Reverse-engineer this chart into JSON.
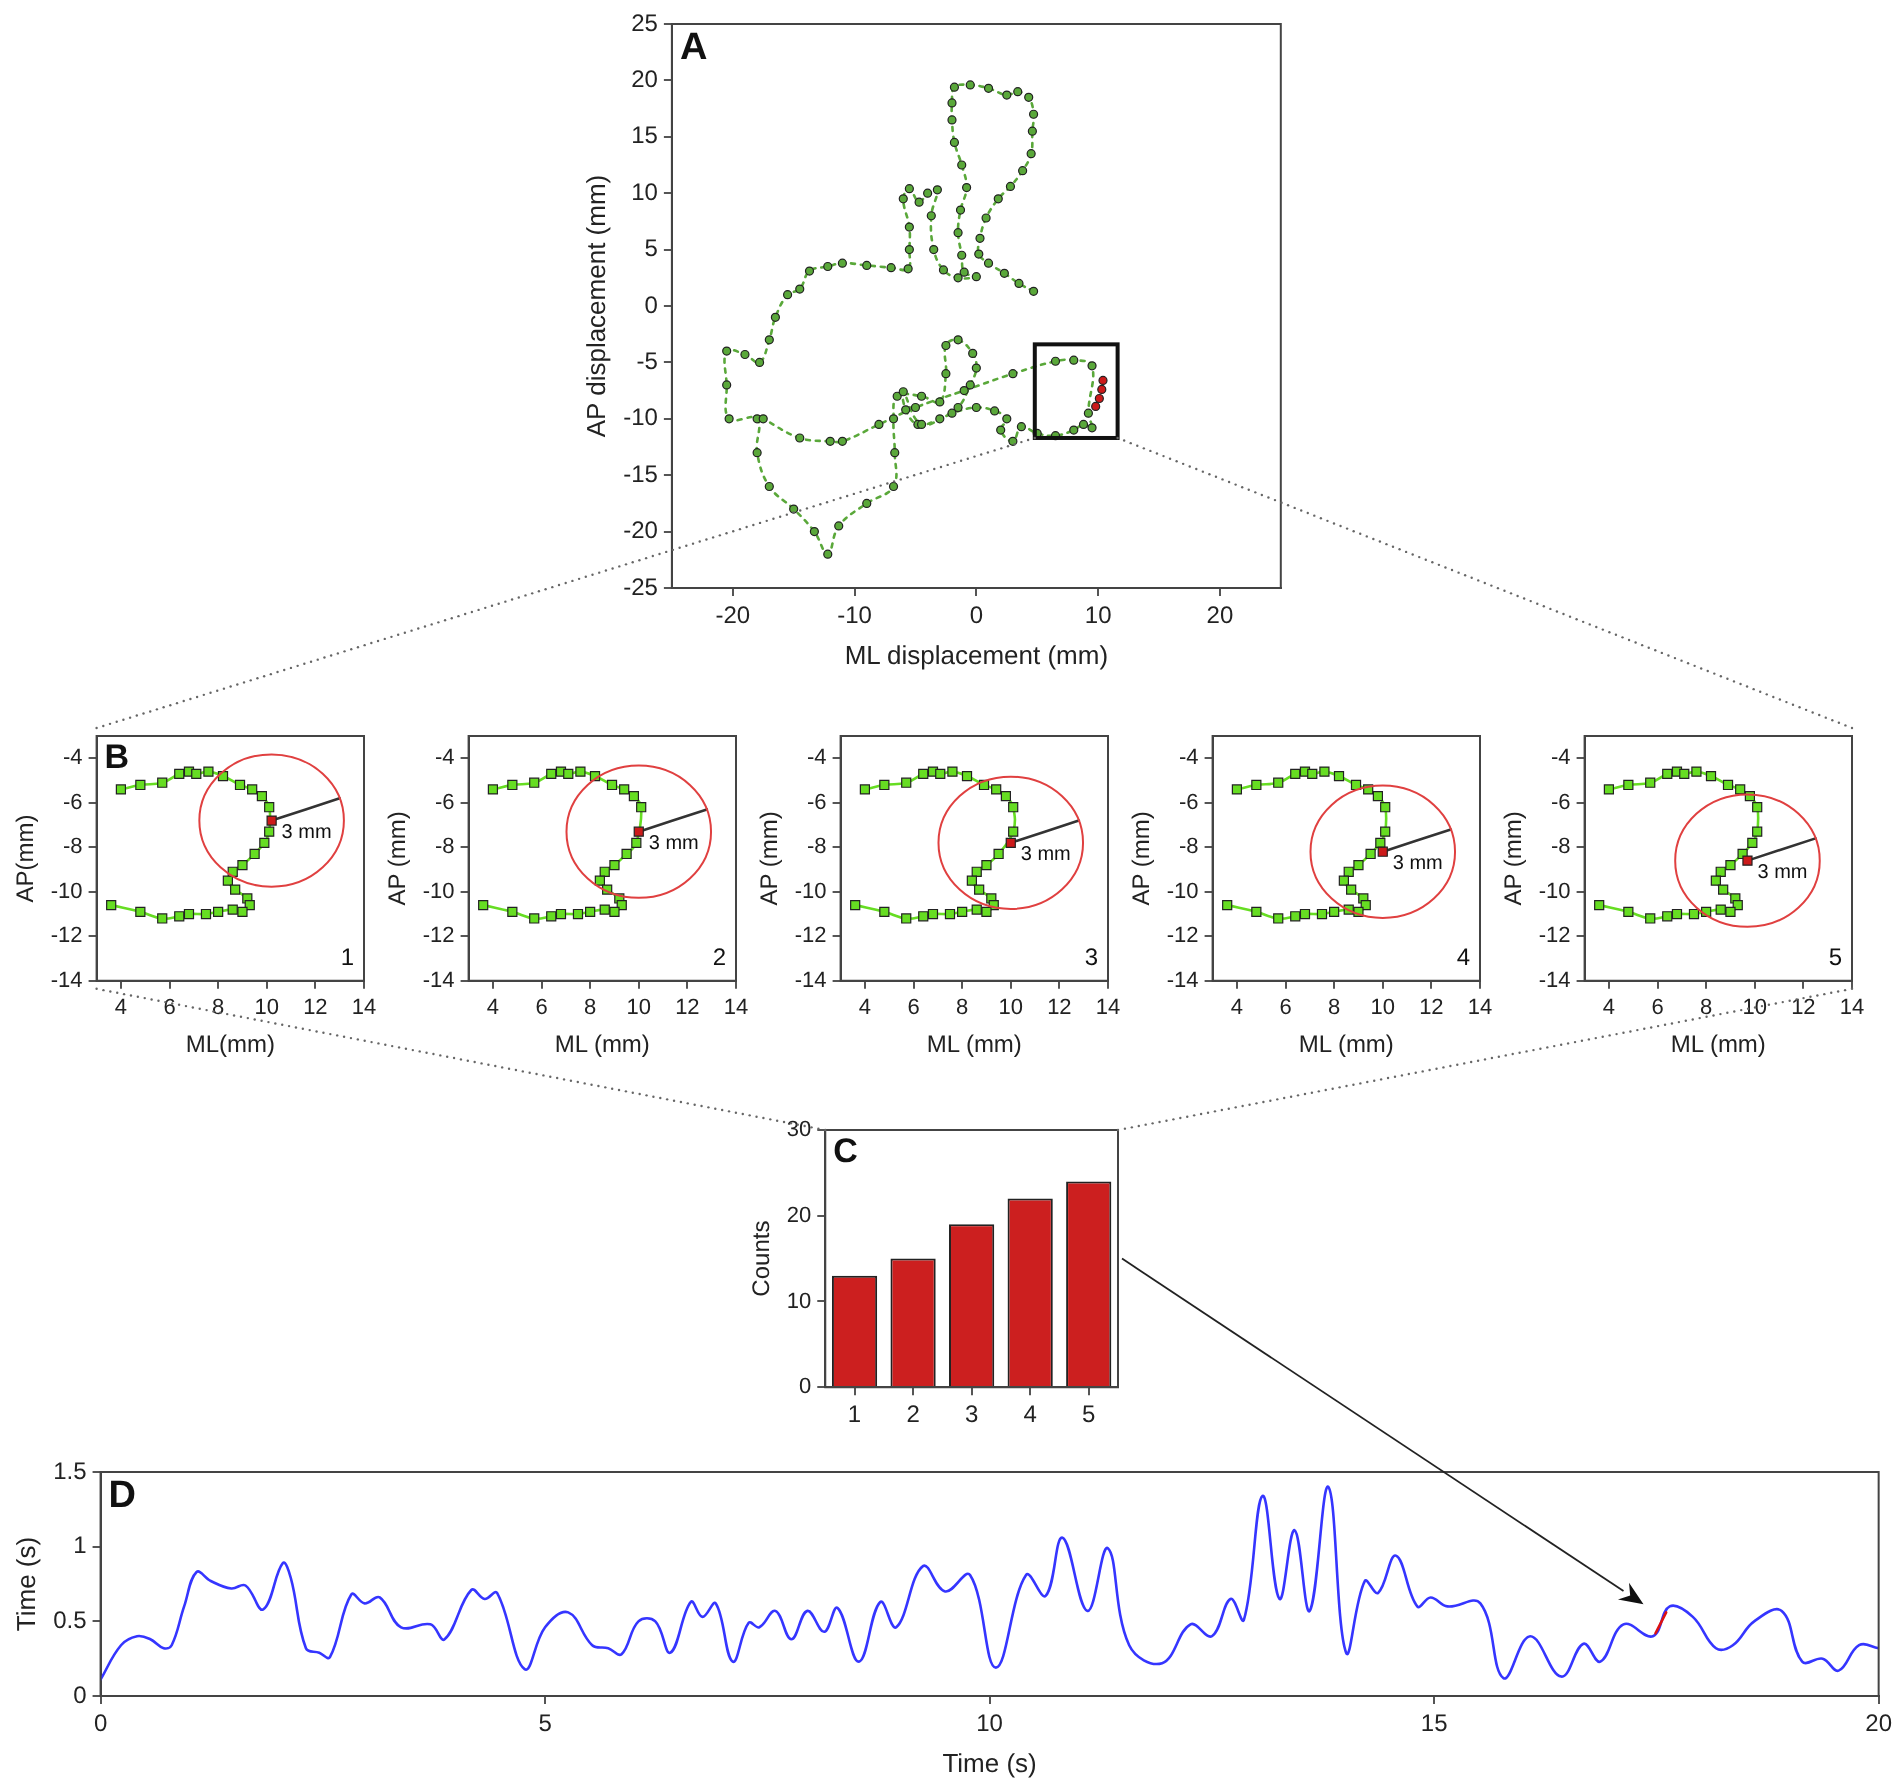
{
  "chart_data": [
    {
      "type": "line",
      "title": "A",
      "xlabel": "ML displacement (mm)",
      "ylabel": "AP displacement (mm)",
      "xlim": [
        -25,
        25
      ],
      "xticks": [
        -20,
        -10,
        0,
        10,
        20
      ],
      "ylim": [
        -25,
        25
      ],
      "yticks": [
        -25,
        -20,
        -15,
        -10,
        -5,
        0,
        5,
        10,
        15,
        20,
        25
      ],
      "series": [
        {
          "type": "line",
          "color": "#5aa83a",
          "marker": "circle",
          "line_style": "dotted",
          "x": [
            4.7,
            3.5,
            2.3,
            1,
            0.2,
            0.3,
            0.8,
            1.8,
            2.8,
            3.8,
            4.5,
            4.6,
            4.7,
            4.3,
            3.4,
            2.5,
            1,
            -0.5,
            -1.8,
            -2,
            -2,
            -1.8,
            -1.2,
            -0.8,
            -1.3,
            -1.5,
            -1.2,
            -1,
            0,
            -1.5,
            -2.7,
            -3.5,
            -3.7,
            -3.2,
            -4,
            -4.7,
            -5.5,
            -6,
            -5.5,
            -5.5,
            -5.6,
            -7,
            -9,
            -11,
            -12.2,
            -13.7,
            -14.5,
            -15.5,
            -16.5,
            -17,
            -17.8,
            -19,
            -20.5,
            -20.5,
            -20.3,
            -18,
            -18,
            -17,
            -15,
            -13.3,
            -12.2,
            -11.3,
            -9,
            -6.8,
            -6.7,
            -6.8,
            -6.5,
            -4.5,
            -3,
            -2.5,
            -2.5,
            -1.5,
            -0.3,
            0,
            -0.5,
            -1.5,
            -3,
            -4.8,
            -5.8,
            -6,
            -4.5,
            -2,
            0,
            1.5,
            2.5,
            2,
            3,
            3.7,
            5,
            6.5,
            8,
            8.8,
            9.5,
            9.2,
            9.5,
            8,
            6.5,
            3,
            -1,
            -5,
            -8,
            -11,
            -12,
            -14.5,
            -17.5
          ],
          "values": [
            1.3,
            2,
            2.9,
            3.8,
            4.6,
            6,
            7.8,
            9.5,
            10.6,
            12,
            13.5,
            15.5,
            17,
            18.5,
            19,
            18.7,
            19.3,
            19.6,
            19.4,
            18,
            16.5,
            14.5,
            12.5,
            10.5,
            8.5,
            6.5,
            4.5,
            3,
            2.6,
            2.5,
            3.2,
            5,
            8,
            10.3,
            10,
            9.2,
            10.4,
            9.5,
            7,
            5,
            3.3,
            3.4,
            3.6,
            3.8,
            3.5,
            3.1,
            1.5,
            1,
            -1,
            -3,
            -5,
            -4.3,
            -4,
            -7,
            -10,
            -10,
            -13,
            -16,
            -18,
            -20,
            -22,
            -19.5,
            -17.5,
            -16,
            -13,
            -10,
            -8,
            -8,
            -8.5,
            -6,
            -3.5,
            -3,
            -4.2,
            -5.5,
            -7,
            -9,
            -10,
            -10.5,
            -9.2,
            -7.6,
            -10.5,
            -9.5,
            -9,
            -9.3,
            -10,
            -11,
            -12,
            -10.7,
            -11.3,
            -11.5,
            -11,
            -10.5,
            -10.8,
            -9.5,
            -5.3,
            -4.8,
            -4.9,
            -6,
            -7.5,
            -9,
            -10.5,
            -12,
            -12,
            -11.7,
            -10
          ]
        },
        {
          "type": "scatter",
          "color": "#cc1a1a",
          "marker": "circle",
          "x": [
            10.4,
            10.3,
            10.1,
            9.8
          ],
          "values": [
            -6.6,
            -7.4,
            -8.2,
            -8.9
          ]
        }
      ]
    },
    {
      "type": "line",
      "title": "B",
      "xlabel": "ML(mm)",
      "ylabel": "AP(mm)",
      "xlim": [
        3,
        14
      ],
      "xticks": [
        4,
        6,
        8,
        10,
        12,
        14
      ],
      "ylim": [
        -14,
        -3
      ],
      "yticks": [
        -14,
        -12,
        -10,
        -8,
        -6,
        -4
      ],
      "annotations": [
        {
          "text": "3 mm",
          "x": 10.2,
          "y": -6.8
        },
        "1"
      ],
      "series": [
        {
          "type": "line",
          "color": "#66dd22",
          "marker": "square",
          "x": [
            4,
            4.8,
            5.7,
            6.4,
            6.8,
            7.1,
            7.6,
            8.2,
            8.9,
            9.4,
            9.8,
            10.1,
            10.1,
            9.9,
            9.5,
            9,
            8.6,
            8.4,
            8.7,
            9.2,
            9.3,
            9,
            8.6,
            8,
            7.5,
            6.8,
            6.4,
            5.7,
            4.8,
            3.6
          ],
          "values": [
            -5.4,
            -5.2,
            -5.1,
            -4.7,
            -4.6,
            -4.7,
            -4.6,
            -4.8,
            -5.2,
            -5.4,
            -5.7,
            -6.2,
            -7.3,
            -7.8,
            -8.3,
            -8.8,
            -9.1,
            -9.5,
            -9.9,
            -10.3,
            -10.6,
            -10.9,
            -10.8,
            -10.9,
            -11,
            -11,
            -11.1,
            -11.2,
            -10.9,
            -10.6
          ]
        },
        {
          "type": "line",
          "color": "#333333",
          "x": [
            10.2,
            13
          ],
          "values": [
            -6.8,
            -5.8
          ]
        },
        {
          "type": "scatter",
          "color": "#cc1a1a",
          "marker": "square",
          "x": [
            10.2
          ],
          "values": [
            -6.8
          ]
        }
      ]
    },
    {
      "type": "line",
      "xlabel": "ML (mm)",
      "ylabel": "AP (mm)",
      "xlim": [
        3,
        14
      ],
      "xticks": [
        4,
        6,
        8,
        10,
        12,
        14
      ],
      "ylim": [
        -14,
        -3
      ],
      "yticks": [
        -14,
        -12,
        -10,
        -8,
        -6,
        -4
      ],
      "annotations": [
        {
          "text": "3 mm",
          "x": 10,
          "y": -7.3
        },
        "2"
      ],
      "series": [
        {
          "type": "line",
          "color": "#66dd22",
          "marker": "square",
          "x": [
            4,
            4.8,
            5.7,
            6.4,
            6.8,
            7.1,
            7.6,
            8.2,
            8.9,
            9.4,
            9.8,
            10.1,
            9.9,
            9.5,
            9,
            8.6,
            8.4,
            8.7,
            9.2,
            9.3,
            9,
            8.6,
            8,
            7.5,
            6.8,
            6.4,
            5.7,
            4.8,
            3.6
          ],
          "values": [
            -5.4,
            -5.2,
            -5.1,
            -4.7,
            -4.6,
            -4.7,
            -4.6,
            -4.8,
            -5.2,
            -5.4,
            -5.7,
            -6.2,
            -7.8,
            -8.3,
            -8.8,
            -9.1,
            -9.5,
            -9.9,
            -10.3,
            -10.6,
            -10.9,
            -10.8,
            -10.9,
            -11,
            -11,
            -11.1,
            -11.2,
            -10.9,
            -10.6
          ]
        },
        {
          "type": "line",
          "color": "#333333",
          "x": [
            10,
            12.8
          ],
          "values": [
            -7.3,
            -6.3
          ]
        },
        {
          "type": "scatter",
          "color": "#cc1a1a",
          "marker": "square",
          "x": [
            10
          ],
          "values": [
            -7.3
          ]
        }
      ]
    },
    {
      "type": "line",
      "xlabel": "ML (mm)",
      "ylabel": "AP (mm)",
      "xlim": [
        3,
        14
      ],
      "xticks": [
        4,
        6,
        8,
        10,
        12,
        14
      ],
      "ylim": [
        -14,
        -3
      ],
      "yticks": [
        -14,
        -12,
        -10,
        -8,
        -6,
        -4
      ],
      "annotations": [
        {
          "text": "3 mm",
          "x": 10,
          "y": -7.8
        },
        "3"
      ],
      "series": [
        {
          "type": "line",
          "color": "#66dd22",
          "marker": "square",
          "x": [
            4,
            4.8,
            5.7,
            6.4,
            6.8,
            7.1,
            7.6,
            8.2,
            8.9,
            9.4,
            9.8,
            10.1,
            10.1,
            9.5,
            9,
            8.6,
            8.4,
            8.7,
            9.2,
            9.3,
            9,
            8.6,
            8,
            7.5,
            6.8,
            6.4,
            5.7,
            4.8,
            3.6
          ],
          "values": [
            -5.4,
            -5.2,
            -5.1,
            -4.7,
            -4.6,
            -4.7,
            -4.6,
            -4.8,
            -5.2,
            -5.4,
            -5.7,
            -6.2,
            -7.3,
            -8.3,
            -8.8,
            -9.1,
            -9.5,
            -9.9,
            -10.3,
            -10.6,
            -10.9,
            -10.8,
            -10.9,
            -11,
            -11,
            -11.1,
            -11.2,
            -10.9,
            -10.6
          ]
        },
        {
          "type": "line",
          "color": "#333333",
          "x": [
            10,
            12.8
          ],
          "values": [
            -7.8,
            -6.8
          ]
        },
        {
          "type": "scatter",
          "color": "#cc1a1a",
          "marker": "square",
          "x": [
            10
          ],
          "values": [
            -7.8
          ]
        }
      ]
    },
    {
      "type": "line",
      "xlabel": "ML (mm)",
      "ylabel": "AP (mm)",
      "xlim": [
        3,
        14
      ],
      "xticks": [
        4,
        6,
        8,
        10,
        12,
        14
      ],
      "ylim": [
        -14,
        -3
      ],
      "yticks": [
        -14,
        -12,
        -10,
        -8,
        -6,
        -4
      ],
      "annotations": [
        {
          "text": "3 mm",
          "x": 10,
          "y": -8.2
        },
        "4"
      ],
      "series": [
        {
          "type": "line",
          "color": "#66dd22",
          "marker": "square",
          "x": [
            4,
            4.8,
            5.7,
            6.4,
            6.8,
            7.1,
            7.6,
            8.2,
            8.9,
            9.4,
            9.8,
            10.1,
            10.1,
            9.9,
            9.5,
            9,
            8.6,
            8.4,
            8.7,
            9.2,
            9.3,
            9,
            8.6,
            8,
            7.5,
            6.8,
            6.4,
            5.7,
            4.8,
            3.6
          ],
          "values": [
            -5.4,
            -5.2,
            -5.1,
            -4.7,
            -4.6,
            -4.7,
            -4.6,
            -4.8,
            -5.2,
            -5.4,
            -5.7,
            -6.2,
            -7.3,
            -7.8,
            -8.3,
            -8.8,
            -9.1,
            -9.5,
            -9.9,
            -10.3,
            -10.6,
            -10.9,
            -10.8,
            -10.9,
            -11,
            -11,
            -11.1,
            -11.2,
            -10.9,
            -10.6
          ]
        },
        {
          "type": "line",
          "color": "#333333",
          "x": [
            10,
            12.8
          ],
          "values": [
            -8.2,
            -7.2
          ]
        },
        {
          "type": "scatter",
          "color": "#cc1a1a",
          "marker": "square",
          "x": [
            10
          ],
          "values": [
            -8.2
          ]
        }
      ]
    },
    {
      "type": "line",
      "xlabel": "ML (mm)",
      "ylabel": "AP (mm)",
      "xlim": [
        3,
        14
      ],
      "xticks": [
        4,
        6,
        8,
        10,
        12,
        14
      ],
      "ylim": [
        -14,
        -3
      ],
      "yticks": [
        -14,
        -12,
        -10,
        -8,
        -6,
        -4
      ],
      "annotations": [
        {
          "text": "3 mm",
          "x": 9.7,
          "y": -8.6
        },
        "5"
      ],
      "series": [
        {
          "type": "line",
          "color": "#66dd22",
          "marker": "square",
          "x": [
            4,
            4.8,
            5.7,
            6.4,
            6.8,
            7.1,
            7.6,
            8.2,
            8.9,
            9.4,
            9.8,
            10.1,
            10.1,
            9.9,
            9.5,
            9,
            8.6,
            8.4,
            8.7,
            9.2,
            9.3,
            9,
            8.6,
            8,
            7.5,
            6.8,
            6.4,
            5.7,
            4.8,
            3.6
          ],
          "values": [
            -5.4,
            -5.2,
            -5.1,
            -4.7,
            -4.6,
            -4.7,
            -4.6,
            -4.8,
            -5.2,
            -5.4,
            -5.7,
            -6.2,
            -7.3,
            -7.8,
            -8.3,
            -8.8,
            -9.1,
            -9.5,
            -9.9,
            -10.3,
            -10.6,
            -10.9,
            -10.8,
            -10.9,
            -11,
            -11,
            -11.1,
            -11.2,
            -10.9,
            -10.6
          ]
        },
        {
          "type": "line",
          "color": "#333333",
          "x": [
            9.7,
            12.5
          ],
          "values": [
            -8.6,
            -7.6
          ]
        },
        {
          "type": "scatter",
          "color": "#cc1a1a",
          "marker": "square",
          "x": [
            9.7
          ],
          "values": [
            -8.6
          ]
        }
      ]
    },
    {
      "type": "bar",
      "title": "C",
      "ylabel": "Counts",
      "categories": [
        "1",
        "2",
        "3",
        "4",
        "5"
      ],
      "values": [
        13,
        15,
        19,
        22,
        24
      ],
      "color": "#cc1f1f",
      "ylim": [
        0,
        30
      ],
      "yticks": [
        0,
        10,
        20,
        30
      ]
    },
    {
      "type": "line",
      "title": "D",
      "xlabel": "Time (s)",
      "ylabel": "Time (s)",
      "xlim": [
        0,
        20
      ],
      "xticks": [
        0,
        5,
        10,
        15,
        20
      ],
      "ylim": [
        0,
        1.5
      ],
      "yticks": [
        0,
        0.5,
        1,
        1.5
      ],
      "series": [
        {
          "type": "line",
          "color": "#3535ff",
          "x": [
            0,
            0.23,
            0.41,
            0.56,
            0.71,
            0.8,
            0.94,
            1.08,
            1.24,
            1.47,
            1.63,
            1.83,
            2.05,
            2.14,
            2.31,
            2.46,
            2.58,
            2.82,
            2.97,
            3.14,
            3.38,
            3.71,
            3.87,
            4.17,
            4.32,
            4.46,
            4.77,
            5,
            5.26,
            5.53,
            5.71,
            5.86,
            6.05,
            6.24,
            6.41,
            6.64,
            6.77,
            6.92,
            7.11,
            7.29,
            7.41,
            7.59,
            7.77,
            7.95,
            8.14,
            8.29,
            8.53,
            8.77,
            8.95,
            9.25,
            9.5,
            9.78,
            10.07,
            10.41,
            10.63,
            10.82,
            11.1,
            11.33,
            11.57,
            11.94,
            12.26,
            12.5,
            12.71,
            12.86,
            13.07,
            13.26,
            13.43,
            13.6,
            13.81,
            14.01,
            14.22,
            14.37,
            14.57,
            14.81,
            14.96,
            15.15,
            15.52,
            15.78,
            16.08,
            16.43,
            16.68,
            16.87,
            17.13,
            17.46,
            17.65,
            17.91,
            18.17,
            18.36,
            18.6,
            18.91,
            19.14,
            19.37,
            19.55,
            19.78,
            20
          ],
          "values": [
            0.11,
            0.34,
            0.4,
            0.38,
            0.32,
            0.34,
            0.6,
            0.83,
            0.77,
            0.72,
            0.74,
            0.58,
            0.89,
            0.79,
            0.32,
            0.29,
            0.26,
            0.68,
            0.62,
            0.66,
            0.46,
            0.48,
            0.38,
            0.71,
            0.65,
            0.69,
            0.18,
            0.46,
            0.56,
            0.34,
            0.32,
            0.28,
            0.5,
            0.5,
            0.29,
            0.63,
            0.53,
            0.62,
            0.23,
            0.49,
            0.46,
            0.57,
            0.38,
            0.57,
            0.43,
            0.59,
            0.23,
            0.63,
            0.46,
            0.87,
            0.7,
            0.81,
            0.19,
            0.81,
            0.67,
            1.06,
            0.57,
            0.99,
            0.34,
            0.22,
            0.48,
            0.4,
            0.65,
            0.51,
            1.34,
            0.65,
            1.11,
            0.57,
            1.4,
            0.29,
            0.77,
            0.69,
            0.94,
            0.6,
            0.66,
            0.6,
            0.62,
            0.12,
            0.4,
            0.13,
            0.35,
            0.23,
            0.48,
            0.4,
            0.6,
            0.53,
            0.32,
            0.34,
            0.5,
            0.57,
            0.23,
            0.25,
            0.17,
            0.34,
            0.32
          ]
        },
        {
          "type": "line",
          "color": "#dd1111",
          "x": [
            17.49,
            17.61
          ],
          "values": [
            0.42,
            0.56
          ]
        }
      ]
    }
  ]
}
